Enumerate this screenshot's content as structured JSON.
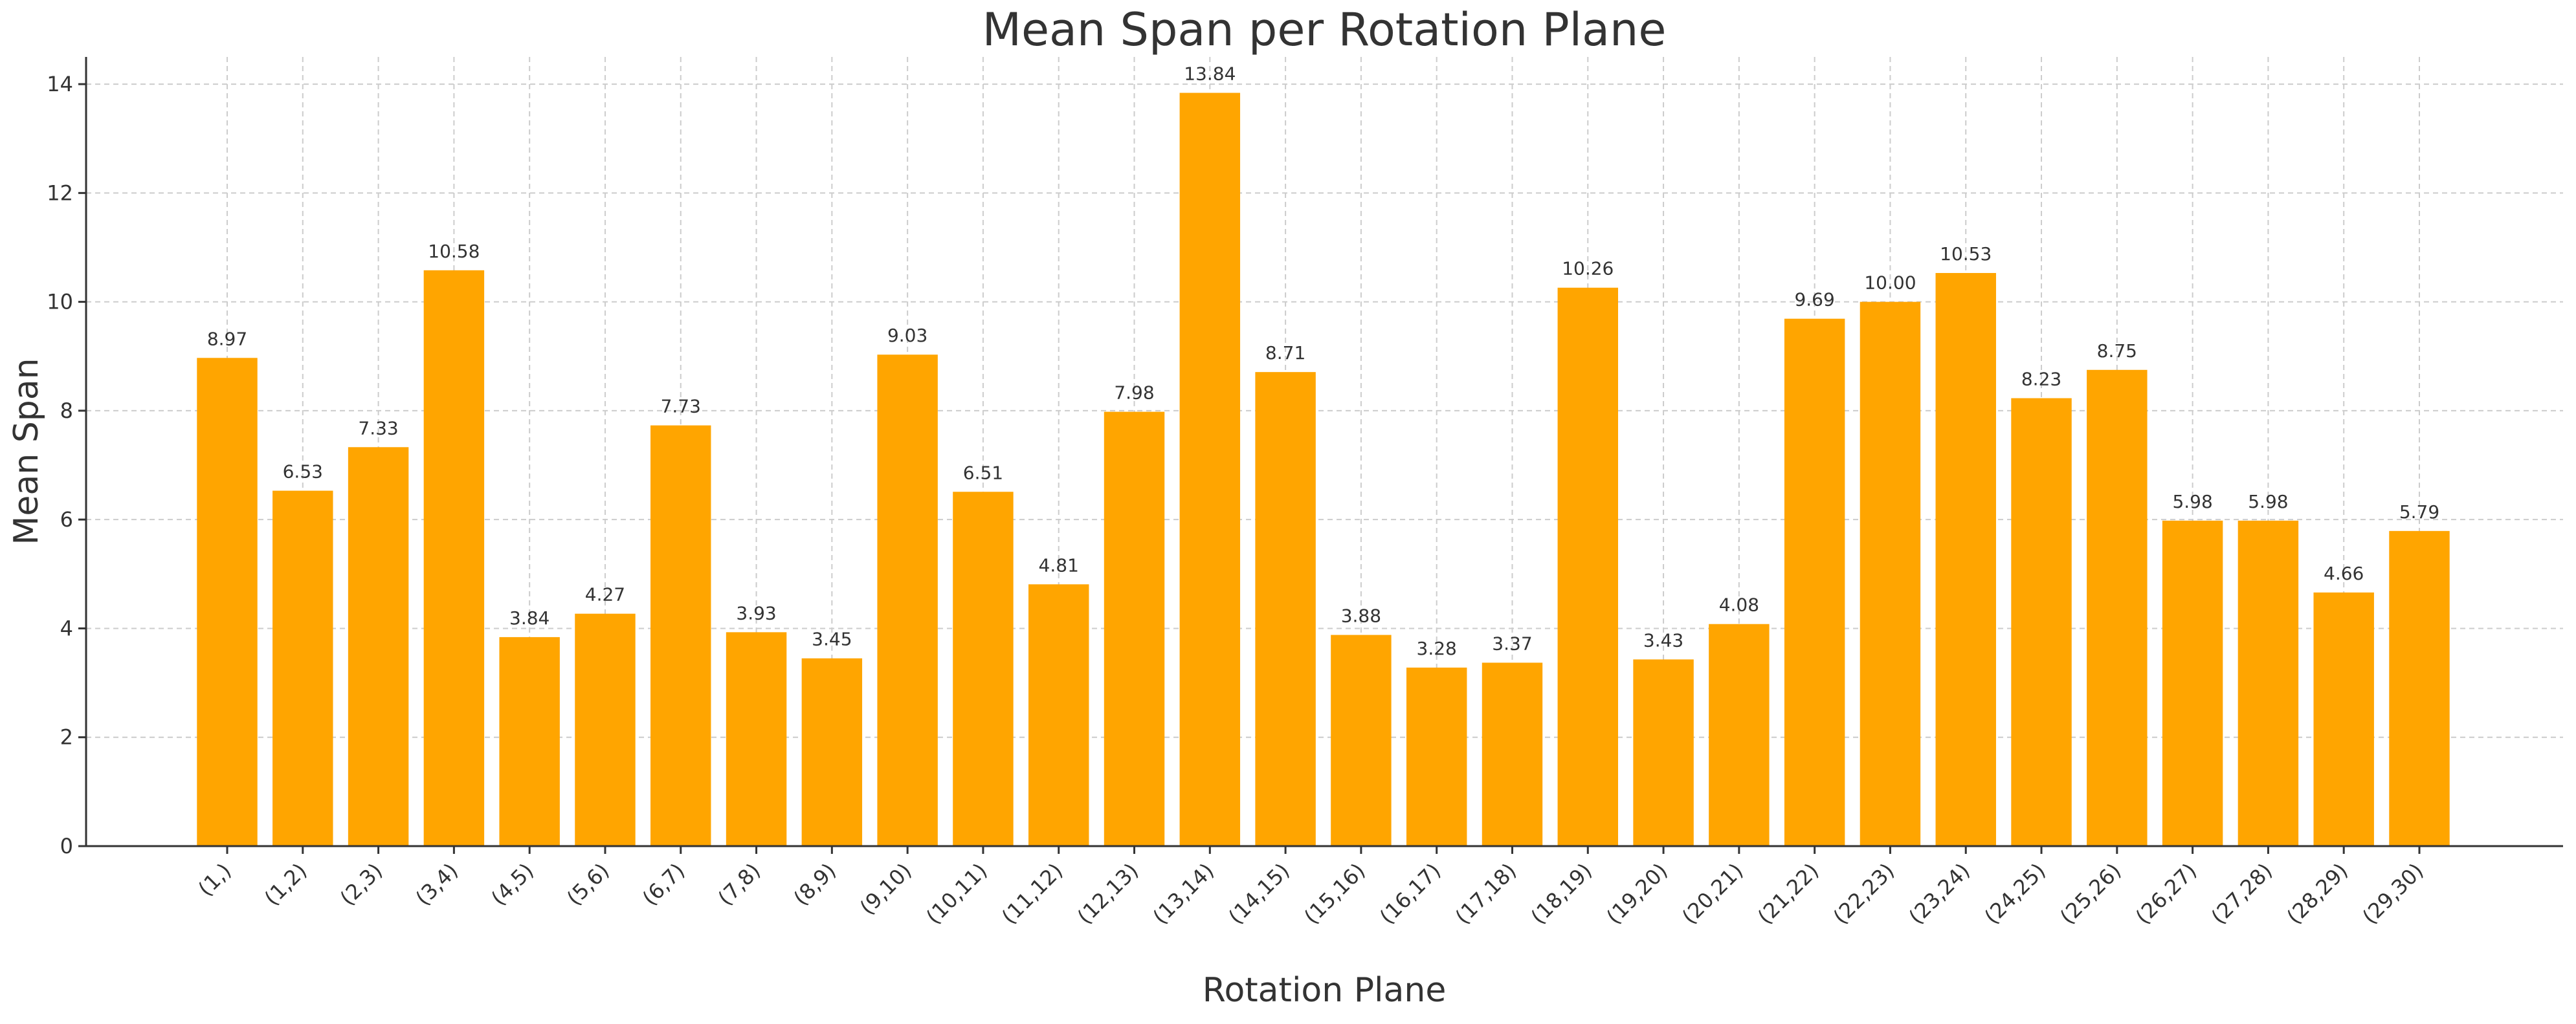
{
  "chart_data": {
    "type": "bar",
    "title": "Mean Span per Rotation Plane",
    "xlabel": "Rotation Plane",
    "ylabel": "Mean Span",
    "ylim": [
      0,
      14.5
    ],
    "yticks": [
      0,
      2,
      4,
      6,
      8,
      10,
      12,
      14
    ],
    "grid": true,
    "bar_color": "#FFA500",
    "categories": [
      "(1,)",
      "(1,2)",
      "(2,3)",
      "(3,4)",
      "(4,5)",
      "(5,6)",
      "(6,7)",
      "(7,8)",
      "(8,9)",
      "(9,10)",
      "(10,11)",
      "(11,12)",
      "(12,13)",
      "(13,14)",
      "(14,15)",
      "(15,16)",
      "(16,17)",
      "(17,18)",
      "(18,19)",
      "(19,20)",
      "(20,21)",
      "(21,22)",
      "(22,23)",
      "(23,24)",
      "(24,25)",
      "(25,26)",
      "(26,27)",
      "(27,28)",
      "(28,29)",
      "(29,30)"
    ],
    "values": [
      8.97,
      6.53,
      7.33,
      10.58,
      3.84,
      4.27,
      7.73,
      3.93,
      3.45,
      9.03,
      6.51,
      4.81,
      7.98,
      13.84,
      8.71,
      3.88,
      3.28,
      3.37,
      10.26,
      3.43,
      4.08,
      9.69,
      10.0,
      10.53,
      8.23,
      8.75,
      5.98,
      5.98,
      4.66,
      5.79
    ],
    "data_labels": [
      "8.97",
      "6.53",
      "7.33",
      "10.58",
      "3.84",
      "4.27",
      "7.73",
      "3.93",
      "3.45",
      "9.03",
      "6.51",
      "4.81",
      "7.98",
      "13.84",
      "8.71",
      "3.88",
      "3.28",
      "3.37",
      "10.26",
      "3.43",
      "4.08",
      "9.69",
      "10.00",
      "10.53",
      "8.23",
      "8.75",
      "5.98",
      "5.98",
      "4.66",
      "5.79"
    ]
  }
}
